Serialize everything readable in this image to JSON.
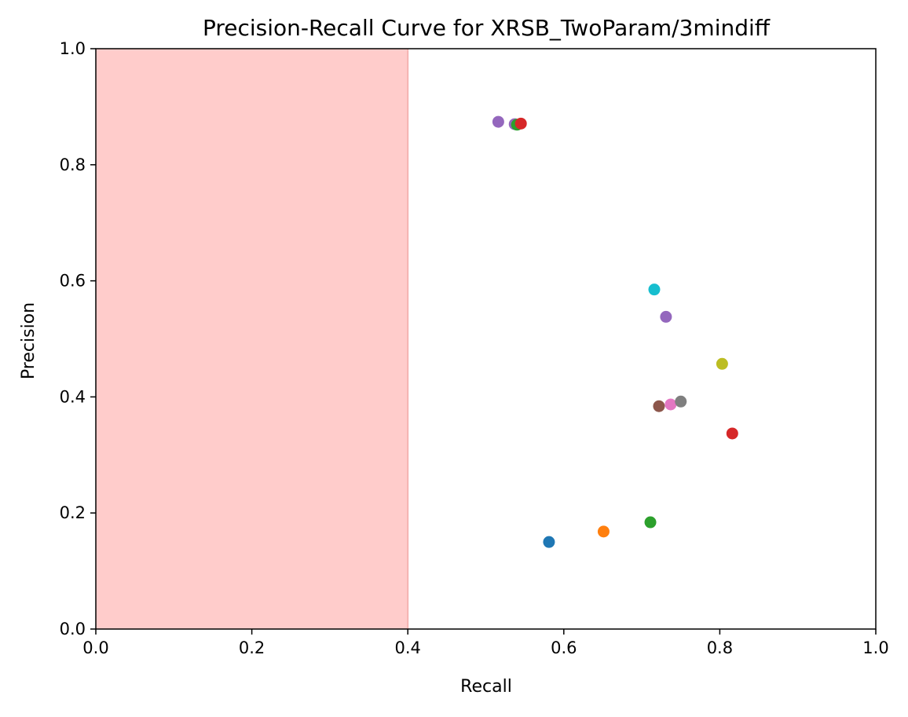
{
  "chart_data": {
    "type": "scatter",
    "title": "Precision-Recall Curve for XRSB_TwoParam/3mindiff",
    "xlabel": "Recall",
    "ylabel": "Precision",
    "xlim": [
      0.0,
      1.0
    ],
    "ylim": [
      0.0,
      1.0
    ],
    "grid": false,
    "xticks": [
      "0.0",
      "0.2",
      "0.4",
      "0.6",
      "0.8",
      "1.0"
    ],
    "yticks": [
      "0.0",
      "0.2",
      "0.4",
      "0.6",
      "0.8",
      "1.0"
    ],
    "shaded_region": {
      "x_from": 0.0,
      "x_to": 0.4,
      "color": "#ffcccb"
    },
    "points": [
      {
        "x": 0.581,
        "y": 0.15,
        "color": "#1f77b4"
      },
      {
        "x": 0.651,
        "y": 0.168,
        "color": "#ff7f0e"
      },
      {
        "x": 0.711,
        "y": 0.184,
        "color": "#2ca02c"
      },
      {
        "x": 0.816,
        "y": 0.337,
        "color": "#d62728"
      },
      {
        "x": 0.731,
        "y": 0.538,
        "color": "#9467bd"
      },
      {
        "x": 0.722,
        "y": 0.384,
        "color": "#8c564b"
      },
      {
        "x": 0.737,
        "y": 0.387,
        "color": "#e377c2"
      },
      {
        "x": 0.75,
        "y": 0.392,
        "color": "#7f7f7f"
      },
      {
        "x": 0.803,
        "y": 0.457,
        "color": "#bcbd22"
      },
      {
        "x": 0.716,
        "y": 0.585,
        "color": "#17becf"
      },
      {
        "x": 0.537,
        "y": 0.87,
        "color": "#9467bd"
      },
      {
        "x": 0.54,
        "y": 0.869,
        "color": "#2ca02c"
      },
      {
        "x": 0.545,
        "y": 0.871,
        "color": "#d62728"
      },
      {
        "x": 0.516,
        "y": 0.874,
        "color": "#9467bd"
      }
    ]
  }
}
